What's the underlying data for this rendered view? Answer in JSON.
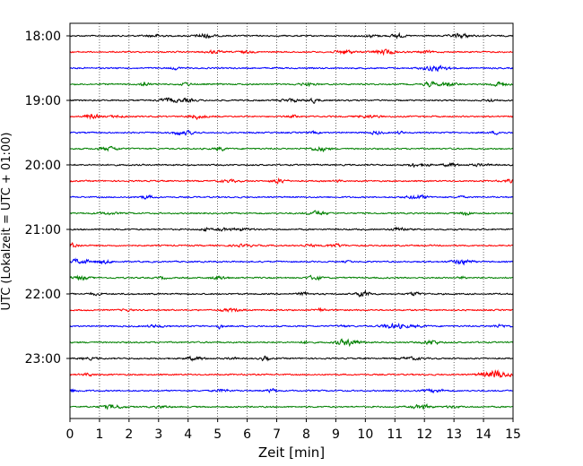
{
  "chart_data": {
    "type": "line",
    "title": "",
    "xlabel": "Zeit  [min]",
    "ylabel": "UTC (Lokalzeit = UTC + 01:00)",
    "xlim": [
      0,
      15
    ],
    "x_ticks": [
      "0",
      "1",
      "2",
      "3",
      "4",
      "5",
      "6",
      "7",
      "8",
      "9",
      "10",
      "11",
      "12",
      "13",
      "14",
      "15"
    ],
    "y_ticks": [
      "18:00",
      "19:00",
      "20:00",
      "21:00",
      "22:00",
      "23:00"
    ],
    "grid": "vertical-dotted",
    "trace_interval_min": 15,
    "trace_colors": [
      "#000000",
      "#ff0000",
      "#0000ff",
      "#008000"
    ],
    "traces": [
      {
        "start": "18:00",
        "color": "#000000"
      },
      {
        "start": "18:15",
        "color": "#ff0000"
      },
      {
        "start": "18:30",
        "color": "#0000ff"
      },
      {
        "start": "18:45",
        "color": "#008000"
      },
      {
        "start": "19:00",
        "color": "#000000"
      },
      {
        "start": "19:15",
        "color": "#ff0000"
      },
      {
        "start": "19:30",
        "color": "#0000ff"
      },
      {
        "start": "19:45",
        "color": "#008000"
      },
      {
        "start": "20:00",
        "color": "#000000"
      },
      {
        "start": "20:15",
        "color": "#ff0000"
      },
      {
        "start": "20:30",
        "color": "#0000ff"
      },
      {
        "start": "20:45",
        "color": "#008000"
      },
      {
        "start": "21:00",
        "color": "#000000"
      },
      {
        "start": "21:15",
        "color": "#ff0000"
      },
      {
        "start": "21:30",
        "color": "#0000ff"
      },
      {
        "start": "21:45",
        "color": "#008000"
      },
      {
        "start": "22:00",
        "color": "#000000"
      },
      {
        "start": "22:15",
        "color": "#ff0000"
      },
      {
        "start": "22:30",
        "color": "#0000ff"
      },
      {
        "start": "22:45",
        "color": "#008000"
      },
      {
        "start": "23:00",
        "color": "#000000"
      },
      {
        "start": "23:15",
        "color": "#ff0000"
      },
      {
        "start": "23:30",
        "color": "#0000ff"
      },
      {
        "start": "23:45",
        "color": "#008000"
      }
    ]
  }
}
